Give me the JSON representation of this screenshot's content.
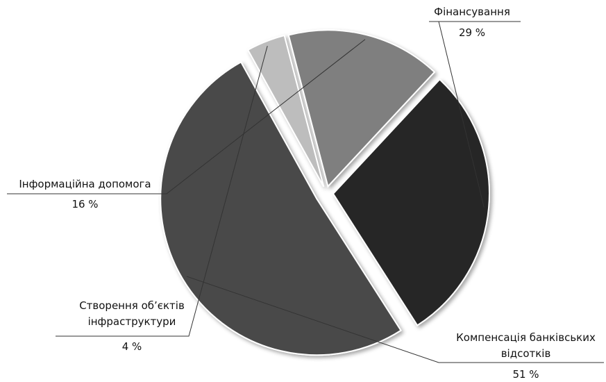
{
  "chart_data": {
    "type": "pie",
    "categories": [
      "Фінансування",
      "Компенсація банківських відсотків",
      "Створення об’єктів інфраструктури",
      "Інформаційна допомога"
    ],
    "values": [
      29,
      51,
      4,
      16
    ],
    "value_labels": [
      "29 %",
      "51 %",
      "4 %",
      "16 %"
    ],
    "colors": [
      "#262626",
      "#4a4a4a",
      "#bdbdbd",
      "#7f7f7f"
    ]
  }
}
